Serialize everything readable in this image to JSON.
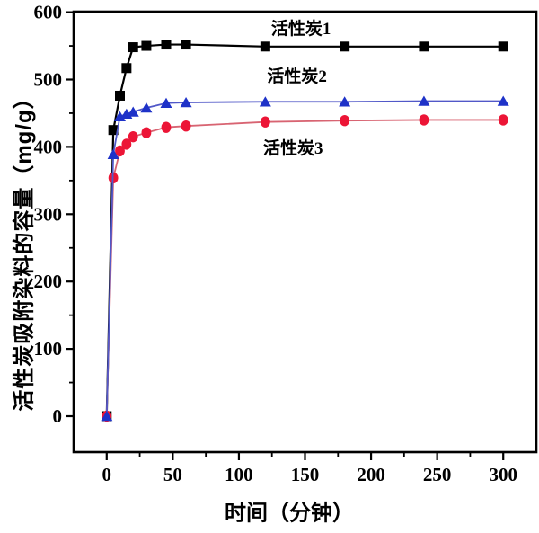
{
  "chart_data": {
    "type": "line",
    "title": "",
    "xlabel": "时间（分钟）",
    "ylabel": "活性炭吸附染料的容量（mg/g）",
    "x": [
      0,
      5,
      10,
      15,
      20,
      30,
      45,
      60,
      120,
      180,
      240,
      300
    ],
    "series": [
      {
        "name": "活性炭1",
        "marker": "square",
        "marker_color": "#000000",
        "line_color": "#000000",
        "values": [
          0,
          425,
          476,
          517,
          548,
          550,
          552,
          552,
          549,
          549,
          549,
          549
        ]
      },
      {
        "name": "活性炭2",
        "marker": "triangle",
        "marker_color": "#1E32C8",
        "line_color": "#5158C8",
        "values": [
          0,
          389,
          445,
          449,
          452,
          458,
          465,
          466,
          467,
          467,
          468,
          468
        ]
      },
      {
        "name": "活性炭3",
        "marker": "circle",
        "marker_color": "#EC1536",
        "line_color": "#D86472",
        "values": [
          0,
          354,
          394,
          404,
          415,
          421,
          429,
          431,
          437,
          439,
          440,
          440
        ]
      }
    ],
    "x_ticks": [
      0,
      50,
      100,
      150,
      200,
      250,
      300
    ],
    "y_ticks": [
      0,
      100,
      200,
      300,
      400,
      500,
      600
    ],
    "x_minor_ticks": [
      25,
      75,
      125,
      175,
      225,
      275
    ],
    "y_minor_ticks": [
      50,
      150,
      250,
      350,
      450,
      550
    ],
    "xlim": [
      -25,
      325
    ],
    "ylim": [
      -53.4,
      600.8
    ],
    "grid": false,
    "legend_position": "in-plot text annotations",
    "annotations": [
      {
        "text": "活性炭1",
        "x": 147,
        "y": 577
      },
      {
        "text": "活性炭2",
        "x": 144,
        "y": 506
      },
      {
        "text": "活性炭3",
        "x": 141,
        "y": 399
      }
    ]
  }
}
